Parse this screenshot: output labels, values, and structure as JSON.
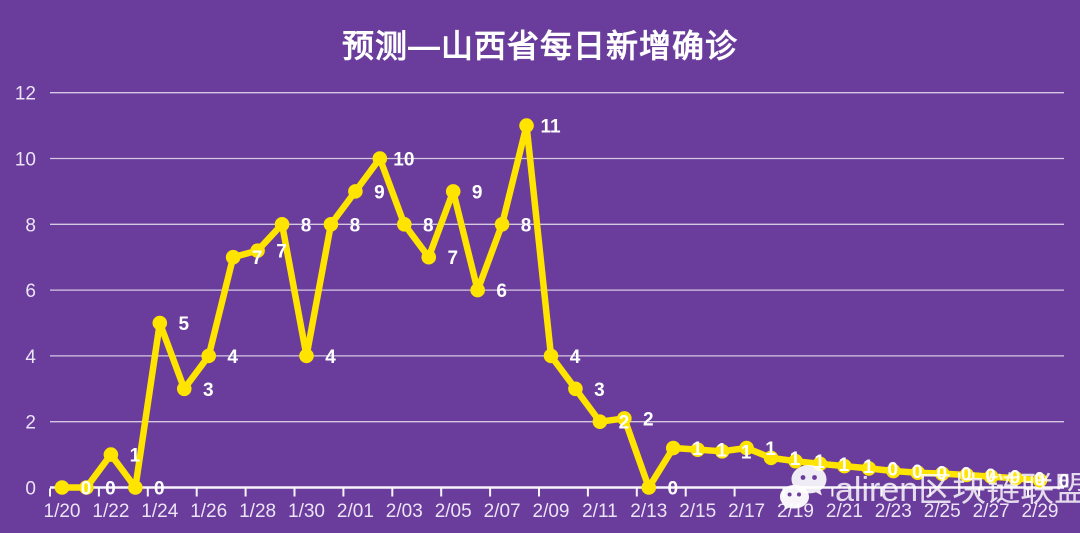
{
  "colors": {
    "background": "#6a3c9b",
    "title": "#ffffff",
    "line": "#ffe400",
    "marker": "#ffe400",
    "point_label": "#ffffff",
    "axis_text": "#ece4f6",
    "gridline": "rgba(255,255,255,0.72)",
    "axis_line": "rgba(255,255,255,0.95)",
    "watermark": "rgba(255,255,255,0.82)"
  },
  "watermark": {
    "icon": "wechat-icon",
    "text": "aliren区块链联盟"
  },
  "chart_data": {
    "type": "line",
    "title": "预测—山西省每日新增确诊",
    "xlabel": "",
    "ylabel": "",
    "ylim": [
      0,
      12
    ],
    "yticks": [
      0,
      2,
      4,
      6,
      8,
      10,
      12
    ],
    "grid": true,
    "legend": false,
    "x_label_every": 2,
    "x": [
      "1/20",
      "1/21",
      "1/22",
      "1/23",
      "1/24",
      "1/25",
      "1/26",
      "1/27",
      "1/28",
      "1/29",
      "1/30",
      "1/31",
      "2/01",
      "2/02",
      "2/03",
      "2/04",
      "2/05",
      "2/06",
      "2/07",
      "2/08",
      "2/09",
      "2/10",
      "2/11",
      "2/12",
      "2/13",
      "2/14",
      "2/15",
      "2/16",
      "2/17",
      "2/18",
      "2/19",
      "2/20",
      "2/21",
      "2/22",
      "2/23",
      "2/24",
      "2/25",
      "2/26",
      "2/27",
      "2/28",
      "2/29"
    ],
    "series": [
      {
        "name": "每日新增确诊",
        "values": [
          0,
          0,
          1,
          0,
          5,
          3,
          4,
          7,
          7,
          8,
          4,
          8,
          9,
          10,
          8,
          7,
          9,
          6,
          8,
          11,
          4,
          3,
          2,
          2,
          0,
          1,
          1,
          1,
          1,
          1,
          1,
          1,
          1,
          0,
          0,
          0,
          0,
          0,
          0,
          0,
          0
        ],
        "plot_values": [
          0,
          0,
          1,
          0,
          5,
          3,
          4,
          7,
          7.2,
          8,
          4,
          8,
          9,
          10,
          8,
          7,
          9,
          6,
          8,
          11,
          4,
          3,
          2,
          2.1,
          0,
          1.2,
          1.15,
          1.1,
          1.2,
          0.9,
          0.8,
          0.72,
          0.65,
          0.58,
          0.5,
          0.45,
          0.42,
          0.38,
          0.33,
          0.28,
          0.22
        ],
        "point_labels": [
          "0",
          "0",
          "1",
          "0",
          "5",
          "3",
          "4",
          "7",
          "7",
          "8",
          "4",
          "8",
          "9",
          "10",
          "8",
          "7",
          "9",
          "6",
          "8",
          "11",
          "4",
          "3",
          "2",
          "2",
          "0",
          "1",
          "1",
          "1",
          "1",
          "1",
          "1",
          "1",
          "1",
          "0",
          "0",
          "0",
          "0",
          "0",
          "0",
          "0",
          "0"
        ]
      }
    ]
  }
}
